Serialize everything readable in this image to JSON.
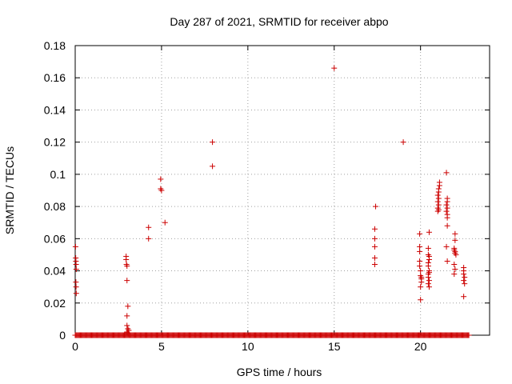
{
  "chart_data": {
    "type": "scatter",
    "title": "Day 287 of 2021, SRMTID for receiver abpo",
    "xlabel": "GPS time / hours",
    "ylabel": "SRMTID / TECUs",
    "xlim": [
      0,
      24
    ],
    "ylim": [
      0,
      0.18
    ],
    "xticks": [
      0,
      5,
      10,
      15,
      20
    ],
    "yticks": [
      0,
      0.02,
      0.04,
      0.06,
      0.08,
      0.1,
      0.12,
      0.14,
      0.16,
      0.18
    ],
    "xtick_labels": [
      "0",
      "5",
      "10",
      "15",
      "20"
    ],
    "ytick_labels": [
      "0",
      "0.02",
      "0.04",
      "0.06",
      "0.08",
      "0.1",
      "0.12",
      "0.14",
      "0.16",
      "0.18"
    ],
    "grid": true,
    "marker": "+",
    "color": "#cc0000",
    "zero_baseline": {
      "x_start": 0,
      "x_end": 22.8,
      "step": 0.05,
      "y": 0
    },
    "points": [
      [
        0.02,
        0.055
      ],
      [
        0.03,
        0.048
      ],
      [
        0.04,
        0.046
      ],
      [
        0.05,
        0.044
      ],
      [
        0.06,
        0.041
      ],
      [
        0.04,
        0.033
      ],
      [
        0.05,
        0.03
      ],
      [
        0.06,
        0.026
      ],
      [
        2.95,
        0.049
      ],
      [
        2.95,
        0.047
      ],
      [
        2.97,
        0.044
      ],
      [
        3.0,
        0.043
      ],
      [
        3.0,
        0.034
      ],
      [
        3.05,
        0.018
      ],
      [
        3.0,
        0.012
      ],
      [
        3.0,
        0.006
      ],
      [
        3.05,
        0.004
      ],
      [
        3.1,
        0.003
      ],
      [
        3.0,
        0.002
      ],
      [
        3.05,
        0.001
      ],
      [
        4.25,
        0.067
      ],
      [
        4.25,
        0.06
      ],
      [
        4.95,
        0.097
      ],
      [
        4.95,
        0.091
      ],
      [
        5.0,
        0.09
      ],
      [
        5.2,
        0.07
      ],
      [
        7.95,
        0.12
      ],
      [
        7.95,
        0.105
      ],
      [
        15.0,
        0.166
      ],
      [
        17.4,
        0.08
      ],
      [
        17.35,
        0.066
      ],
      [
        17.35,
        0.06
      ],
      [
        17.35,
        0.055
      ],
      [
        17.35,
        0.048
      ],
      [
        17.35,
        0.044
      ],
      [
        19.0,
        0.12
      ],
      [
        19.95,
        0.063
      ],
      [
        19.95,
        0.055
      ],
      [
        19.95,
        0.052
      ],
      [
        19.95,
        0.046
      ],
      [
        19.95,
        0.043
      ],
      [
        20.0,
        0.04
      ],
      [
        20.0,
        0.037
      ],
      [
        20.05,
        0.036
      ],
      [
        20.05,
        0.035
      ],
      [
        20.05,
        0.033
      ],
      [
        20.0,
        0.03
      ],
      [
        20.0,
        0.022
      ],
      [
        20.5,
        0.064
      ],
      [
        20.45,
        0.054
      ],
      [
        20.45,
        0.05
      ],
      [
        20.5,
        0.049
      ],
      [
        20.5,
        0.047
      ],
      [
        20.45,
        0.045
      ],
      [
        20.45,
        0.043
      ],
      [
        20.5,
        0.04
      ],
      [
        20.5,
        0.039
      ],
      [
        20.45,
        0.038
      ],
      [
        20.45,
        0.036
      ],
      [
        20.5,
        0.034
      ],
      [
        20.45,
        0.032
      ],
      [
        20.5,
        0.03
      ],
      [
        21.1,
        0.095
      ],
      [
        21.1,
        0.093
      ],
      [
        21.05,
        0.091
      ],
      [
        21.05,
        0.089
      ],
      [
        21.0,
        0.087
      ],
      [
        21.05,
        0.085
      ],
      [
        21.0,
        0.083
      ],
      [
        21.05,
        0.081
      ],
      [
        21.0,
        0.079
      ],
      [
        21.05,
        0.078
      ],
      [
        21.0,
        0.077
      ],
      [
        21.5,
        0.101
      ],
      [
        21.55,
        0.085
      ],
      [
        21.55,
        0.083
      ],
      [
        21.5,
        0.081
      ],
      [
        21.55,
        0.079
      ],
      [
        21.5,
        0.077
      ],
      [
        21.55,
        0.075
      ],
      [
        21.55,
        0.073
      ],
      [
        21.55,
        0.068
      ],
      [
        21.5,
        0.055
      ],
      [
        21.55,
        0.046
      ],
      [
        22.0,
        0.063
      ],
      [
        22.0,
        0.059
      ],
      [
        21.95,
        0.054
      ],
      [
        21.95,
        0.053
      ],
      [
        22.0,
        0.052
      ],
      [
        22.0,
        0.051
      ],
      [
        22.05,
        0.05
      ],
      [
        21.95,
        0.044
      ],
      [
        22.0,
        0.041
      ],
      [
        21.95,
        0.038
      ],
      [
        22.5,
        0.042
      ],
      [
        22.5,
        0.04
      ],
      [
        22.5,
        0.038
      ],
      [
        22.55,
        0.036
      ],
      [
        22.5,
        0.034
      ],
      [
        22.55,
        0.032
      ],
      [
        22.5,
        0.024
      ]
    ]
  }
}
